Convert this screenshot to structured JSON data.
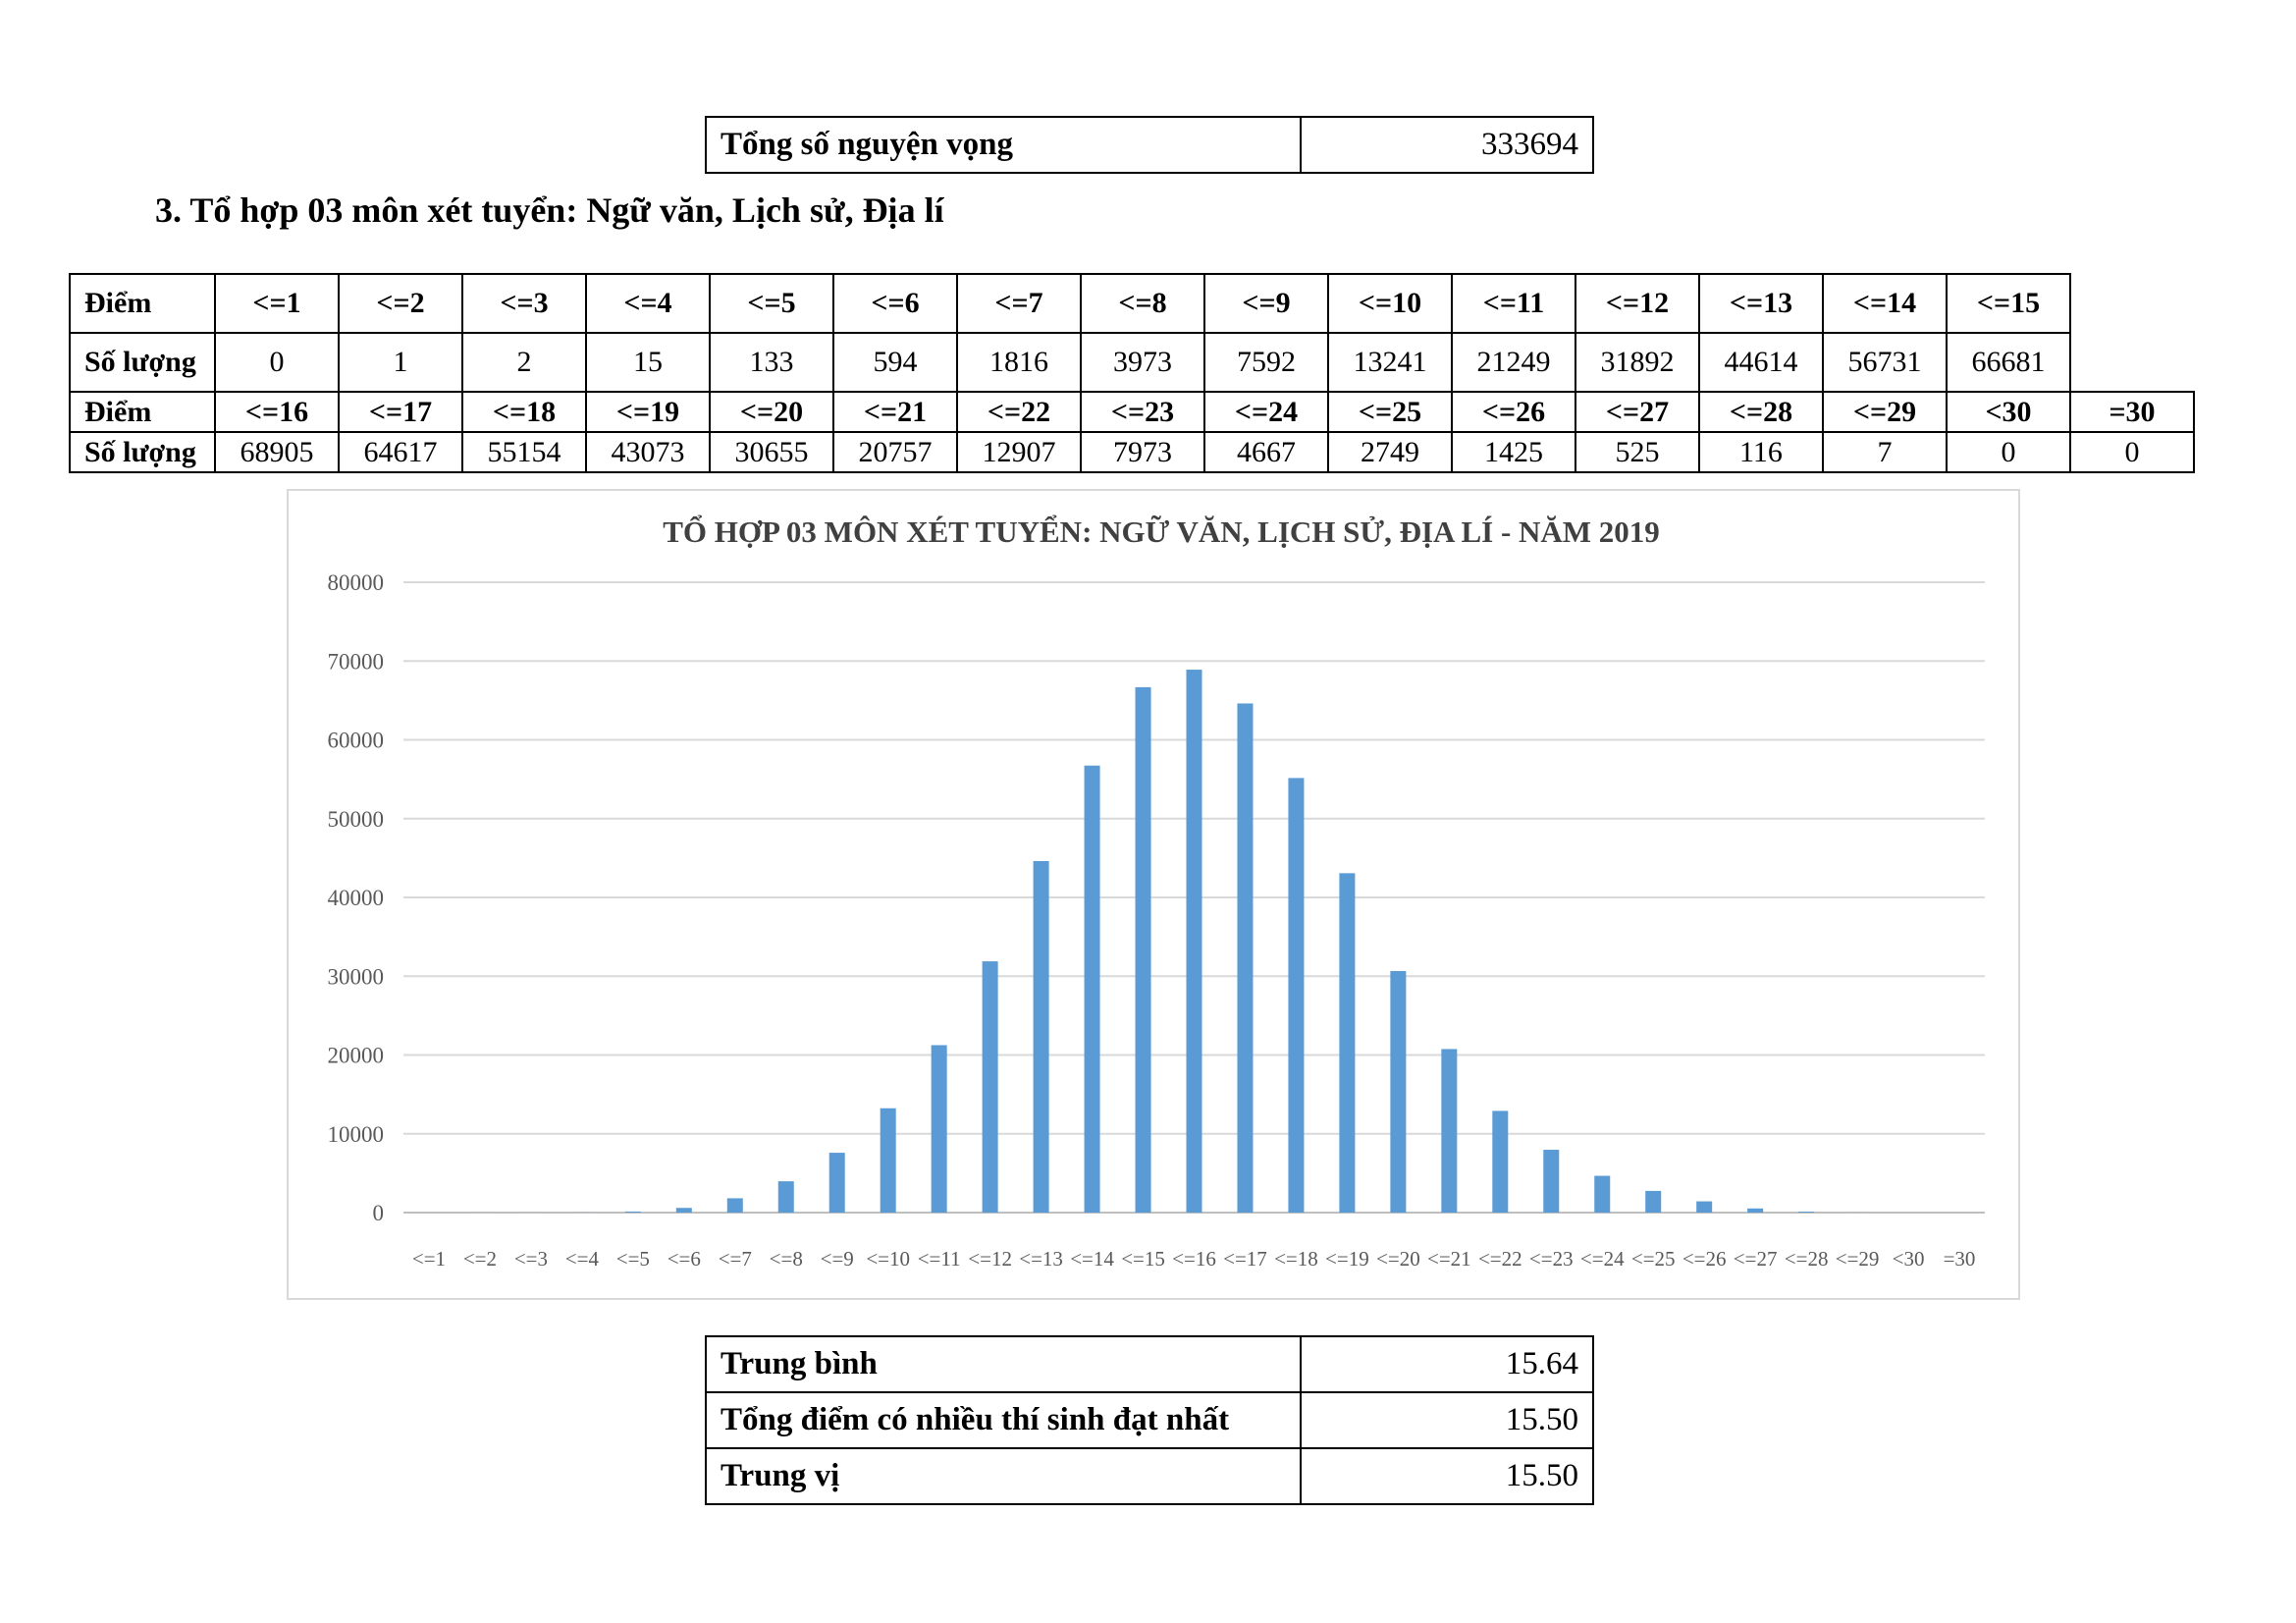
{
  "top_table": {
    "label": "Tổng số nguyện vọng",
    "value": "333694"
  },
  "section_heading": "3. Tổ hợp 03 môn xét tuyển: Ngữ văn, Lịch sử, Địa lí",
  "score_table": {
    "row_label_score": "Điểm",
    "row_label_count": "Số lượng",
    "part1_scores": [
      "<=1",
      "<=2",
      "<=3",
      "<=4",
      "<=5",
      "<=6",
      "<=7",
      "<=8",
      "<=9",
      "<=10",
      "<=11",
      "<=12",
      "<=13",
      "<=14",
      "<=15"
    ],
    "part1_counts": [
      "0",
      "1",
      "2",
      "15",
      "133",
      "594",
      "1816",
      "3973",
      "7592",
      "13241",
      "21249",
      "31892",
      "44614",
      "56731",
      "66681"
    ],
    "part2_scores": [
      "<=16",
      "<=17",
      "<=18",
      "<=19",
      "<=20",
      "<=21",
      "<=22",
      "<=23",
      "<=24",
      "<=25",
      "<=26",
      "<=27",
      "<=28",
      "<=29",
      "<30",
      "=30"
    ],
    "part2_counts": [
      "68905",
      "64617",
      "55154",
      "43073",
      "30655",
      "20757",
      "12907",
      "7973",
      "4667",
      "2749",
      "1425",
      "525",
      "116",
      "7",
      "0",
      "0"
    ]
  },
  "chart_data": {
    "type": "bar",
    "title": "TỔ HỢP 03 MÔN XÉT TUYỂN: NGỮ VĂN, LỊCH SỬ, ĐỊA LÍ - NĂM 2019",
    "categories": [
      "<=1",
      "<=2",
      "<=3",
      "<=4",
      "<=5",
      "<=6",
      "<=7",
      "<=8",
      "<=9",
      "<=10",
      "<=11",
      "<=12",
      "<=13",
      "<=14",
      "<=15",
      "<=16",
      "<=17",
      "<=18",
      "<=19",
      "<=20",
      "<=21",
      "<=22",
      "<=23",
      "<=24",
      "<=25",
      "<=26",
      "<=27",
      "<=28",
      "<=29",
      "<30",
      "=30"
    ],
    "values": [
      0,
      1,
      2,
      15,
      133,
      594,
      1816,
      3973,
      7592,
      13241,
      21249,
      31892,
      44614,
      56731,
      66681,
      68905,
      64617,
      55154,
      43073,
      30655,
      20757,
      12907,
      7973,
      4667,
      2749,
      1425,
      525,
      116,
      7,
      0,
      0
    ],
    "ylim": [
      0,
      80000
    ],
    "yticks": [
      0,
      10000,
      20000,
      30000,
      40000,
      50000,
      60000,
      70000,
      80000
    ],
    "grid": true,
    "bar_color": "#5b9bd5",
    "xlabel": "",
    "ylabel": ""
  },
  "stats_table": [
    {
      "label": "Trung bình",
      "value": "15.64"
    },
    {
      "label": "Tổng điểm có nhiều thí sinh đạt nhất",
      "value": "15.50"
    },
    {
      "label": "Trung vị",
      "value": "15.50"
    }
  ]
}
